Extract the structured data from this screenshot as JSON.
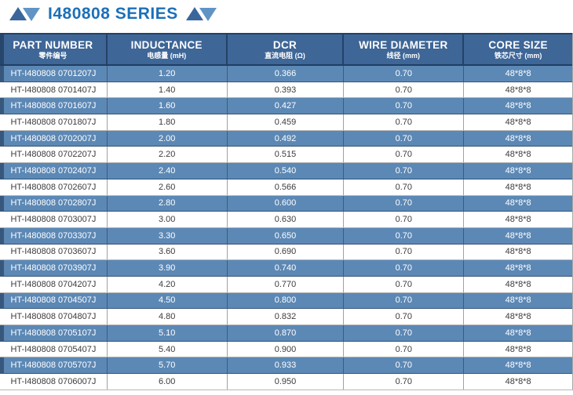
{
  "title": {
    "text": "I480808 SERIES"
  },
  "icons": {
    "left_ornament": "double-triangle-icon",
    "right_ornament": "double-triangle-icon"
  },
  "colors": {
    "title_blue": "#1c70b8",
    "triangle_dark": "#3a669c",
    "triangle_light": "#6193c5",
    "header_bg": "#3e6697",
    "row_blue": "#5c88b5",
    "row_text_dark": "#3c3c3c"
  },
  "table": {
    "columns": [
      {
        "label": "PART NUMBER",
        "sublabel": "零件编号"
      },
      {
        "label": "INDUCTANCE",
        "sublabel": "电感量 (mH)"
      },
      {
        "label": "DCR",
        "sublabel": "直流电阻 (Ω)"
      },
      {
        "label": "WIRE DIAMETER",
        "sublabel": "线径 (mm)"
      },
      {
        "label": "CORE SIZE",
        "sublabel": "铁芯尺寸 (mm)"
      }
    ],
    "rows": [
      {
        "part_number": "HT-I480808 0701207J",
        "inductance": "1.20",
        "dcr": "0.366",
        "wire_diameter": "0.70",
        "core_size": "48*8*8"
      },
      {
        "part_number": "HT-I480808 0701407J",
        "inductance": "1.40",
        "dcr": "0.393",
        "wire_diameter": "0.70",
        "core_size": "48*8*8"
      },
      {
        "part_number": "HT-I480808 0701607J",
        "inductance": "1.60",
        "dcr": "0.427",
        "wire_diameter": "0.70",
        "core_size": "48*8*8"
      },
      {
        "part_number": "HT-I480808 0701807J",
        "inductance": "1.80",
        "dcr": "0.459",
        "wire_diameter": "0.70",
        "core_size": "48*8*8"
      },
      {
        "part_number": "HT-I480808 0702007J",
        "inductance": "2.00",
        "dcr": "0.492",
        "wire_diameter": "0.70",
        "core_size": "48*8*8"
      },
      {
        "part_number": "HT-I480808 0702207J",
        "inductance": "2.20",
        "dcr": "0.515",
        "wire_diameter": "0.70",
        "core_size": "48*8*8"
      },
      {
        "part_number": "HT-I480808 0702407J",
        "inductance": "2.40",
        "dcr": "0.540",
        "wire_diameter": "0.70",
        "core_size": "48*8*8"
      },
      {
        "part_number": "HT-I480808 0702607J",
        "inductance": "2.60",
        "dcr": "0.566",
        "wire_diameter": "0.70",
        "core_size": "48*8*8"
      },
      {
        "part_number": "HT-I480808 0702807J",
        "inductance": "2.80",
        "dcr": "0.600",
        "wire_diameter": "0.70",
        "core_size": "48*8*8"
      },
      {
        "part_number": "HT-I480808 0703007J",
        "inductance": "3.00",
        "dcr": "0.630",
        "wire_diameter": "0.70",
        "core_size": "48*8*8"
      },
      {
        "part_number": "HT-I480808 0703307J",
        "inductance": "3.30",
        "dcr": "0.650",
        "wire_diameter": "0.70",
        "core_size": "48*8*8"
      },
      {
        "part_number": "HT-I480808 0703607J",
        "inductance": "3.60",
        "dcr": "0.690",
        "wire_diameter": "0.70",
        "core_size": "48*8*8"
      },
      {
        "part_number": "HT-I480808 0703907J",
        "inductance": "3.90",
        "dcr": "0.740",
        "wire_diameter": "0.70",
        "core_size": "48*8*8"
      },
      {
        "part_number": "HT-I480808 0704207J",
        "inductance": "4.20",
        "dcr": "0.770",
        "wire_diameter": "0.70",
        "core_size": "48*8*8"
      },
      {
        "part_number": "HT-I480808 0704507J",
        "inductance": "4.50",
        "dcr": "0.800",
        "wire_diameter": "0.70",
        "core_size": "48*8*8"
      },
      {
        "part_number": "HT-I480808 0704807J",
        "inductance": "4.80",
        "dcr": "0.832",
        "wire_diameter": "0.70",
        "core_size": "48*8*8"
      },
      {
        "part_number": "HT-I480808 0705107J",
        "inductance": "5.10",
        "dcr": "0.870",
        "wire_diameter": "0.70",
        "core_size": "48*8*8"
      },
      {
        "part_number": "HT-I480808 0705407J",
        "inductance": "5.40",
        "dcr": "0.900",
        "wire_diameter": "0.70",
        "core_size": "48*8*8"
      },
      {
        "part_number": "HT-I480808 0705707J",
        "inductance": "5.70",
        "dcr": "0.933",
        "wire_diameter": "0.70",
        "core_size": "48*8*8"
      },
      {
        "part_number": "HT-I480808 0706007J",
        "inductance": "6.00",
        "dcr": "0.950",
        "wire_diameter": "0.70",
        "core_size": "48*8*8"
      }
    ]
  }
}
